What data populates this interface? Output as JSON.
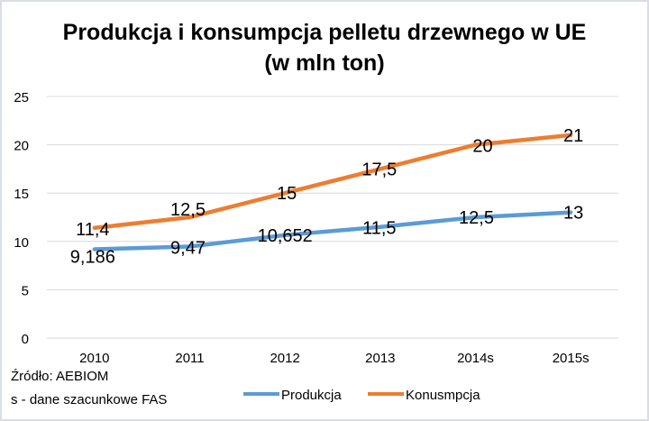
{
  "chart_data": {
    "type": "line",
    "title_line1": "Produkcja i konsumpcja pelletu drzewnego w UE",
    "title_line2": "(w mln ton)",
    "categories": [
      "2010",
      "2011",
      "2012",
      "2013",
      "2014s",
      "2015s"
    ],
    "ylim": [
      0,
      25
    ],
    "yticks": [
      "0",
      "5",
      "10",
      "15",
      "20",
      "25"
    ],
    "grid": true,
    "legend_position": "bottom",
    "series": [
      {
        "name": "Produkcja",
        "color": "#5b9bd5",
        "values": [
          9.186,
          9.47,
          10.652,
          11.5,
          12.5,
          13
        ],
        "labels": [
          "9,186",
          "9,47",
          "10,652",
          "11,5",
          "12,5",
          "13"
        ]
      },
      {
        "name": "Konusmpcja",
        "color": "#ed7d31",
        "values": [
          11.4,
          12.5,
          15,
          17.5,
          20,
          21
        ],
        "labels": [
          "11,4",
          "12,5",
          "15",
          "17,5",
          "20",
          "21"
        ]
      }
    ]
  },
  "notes": {
    "source": "Źródło: AEBIOM",
    "estimate": "s - dane szacunkowe FAS"
  }
}
